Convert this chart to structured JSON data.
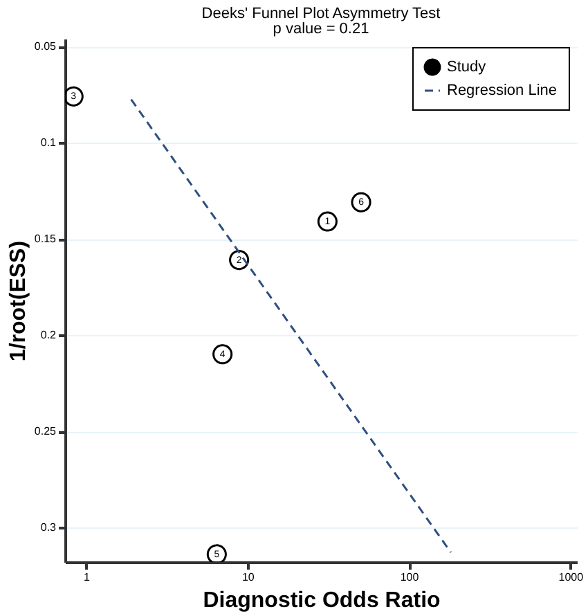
{
  "chart_data": {
    "type": "scatter",
    "title": "Deeks' Funnel Plot Asymmetry Test",
    "subtitle": "p value =  0.21",
    "xlabel": "Diagnostic Odds Ratio",
    "ylabel": "1/root(ESS)",
    "log": "x",
    "xlim": [
      0.74,
      1100
    ],
    "xticks": [
      1,
      10,
      100,
      1000
    ],
    "ylim": [
      0.318,
      0.046
    ],
    "yticks": [
      0.05,
      0.1,
      0.15,
      0.2,
      0.25,
      0.3
    ],
    "grid": "y",
    "legend": "top right",
    "series": [
      {
        "name": "Study",
        "type": "scatter",
        "marker": "circle",
        "color": "#000000",
        "x": [
          31.3,
          8.87,
          0.835,
          7.0,
          6.45,
          50.6
        ],
        "values": [
          0.141,
          0.161,
          0.076,
          0.21,
          0.314,
          0.131
        ]
      },
      {
        "name": "Regression Line",
        "type": "line",
        "color": "#2f4f7f",
        "line_style": "dashed",
        "x": [
          1.9,
          182
        ],
        "values": [
          0.0775,
          0.313
        ]
      }
    ],
    "annotations": [
      {
        "text": "1",
        "x": 31.3,
        "y": 0.141
      },
      {
        "text": "2",
        "x": 8.87,
        "y": 0.161
      },
      {
        "text": "3",
        "x": 0.835,
        "y": 0.076
      },
      {
        "text": "4",
        "x": 7.0,
        "y": 0.21
      },
      {
        "text": "5",
        "x": 6.45,
        "y": 0.314
      },
      {
        "text": "6",
        "x": 50.6,
        "y": 0.131
      }
    ]
  }
}
